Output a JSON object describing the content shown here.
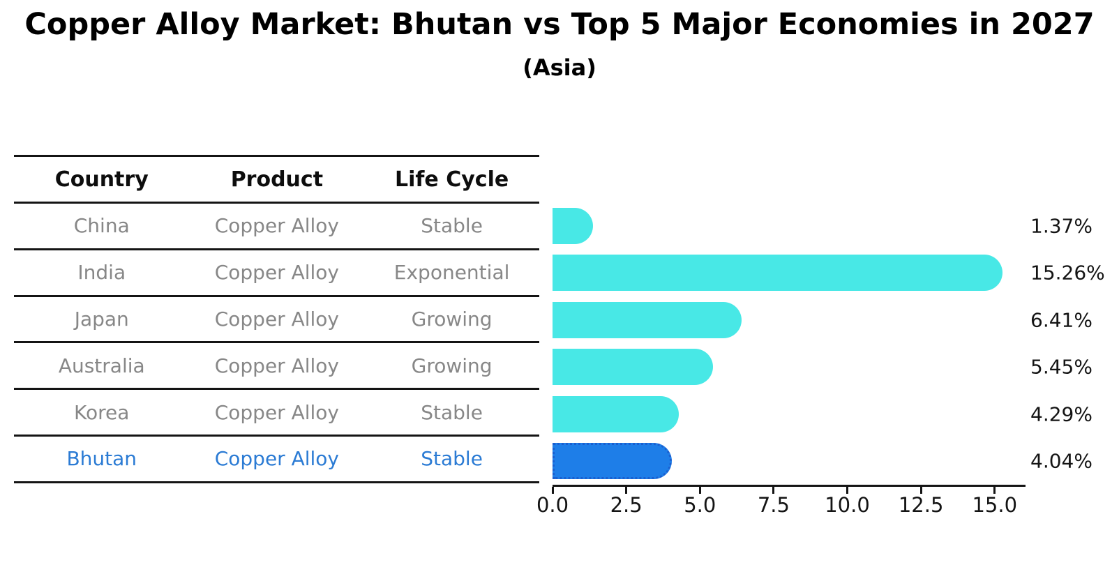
{
  "title": "Copper Alloy Market: Bhutan vs Top 5 Major Economies in 2027",
  "subtitle": "(Asia)",
  "colors": {
    "bar_default": "#48e8e6",
    "bar_highlight": "#1e7ee8",
    "bar_highlight_border": "#1a5fd0",
    "highlight_text": "#2b7bd4",
    "table_text": "#878787",
    "header_text": "#0d0d0d",
    "axis_color": "#141414",
    "background": "#ffffff"
  },
  "table": {
    "headers": [
      "Country",
      "Product",
      "Life Cycle"
    ],
    "rows": [
      {
        "country": "China",
        "product": "Copper Alloy",
        "life_cycle": "Stable",
        "highlight": false
      },
      {
        "country": "India",
        "product": "Copper Alloy",
        "life_cycle": "Exponential",
        "highlight": false
      },
      {
        "country": "Japan",
        "product": "Copper Alloy",
        "life_cycle": "Growing",
        "highlight": false
      },
      {
        "country": "Australia",
        "product": "Copper Alloy",
        "life_cycle": "Growing",
        "highlight": false
      },
      {
        "country": "Korea",
        "product": "Copper Alloy",
        "life_cycle": "Stable",
        "highlight": false
      },
      {
        "country": "Bhutan",
        "product": "Copper Alloy",
        "life_cycle": "Stable",
        "highlight": true
      }
    ]
  },
  "chart_data": {
    "type": "bar",
    "orientation": "horizontal",
    "title": "Copper Alloy Market: Bhutan vs Top 5 Major Economies in 2027",
    "subtitle": "(Asia)",
    "categories": [
      "China",
      "India",
      "Japan",
      "Australia",
      "Korea",
      "Bhutan"
    ],
    "values": [
      1.37,
      15.26,
      6.41,
      5.45,
      4.29,
      4.04
    ],
    "labels": [
      "1.37%",
      "15.26%",
      "6.41%",
      "5.45%",
      "4.29%",
      "4.04%"
    ],
    "highlight_index": 5,
    "xlim": [
      0,
      16
    ],
    "xtick_values": [
      0,
      2.5,
      5,
      7.5,
      10,
      12.5,
      15
    ],
    "xticks": [
      "0.0",
      "2.5",
      "5.0",
      "7.5",
      "10.0",
      "12.5",
      "15.0"
    ],
    "grid": false,
    "legend": false
  }
}
